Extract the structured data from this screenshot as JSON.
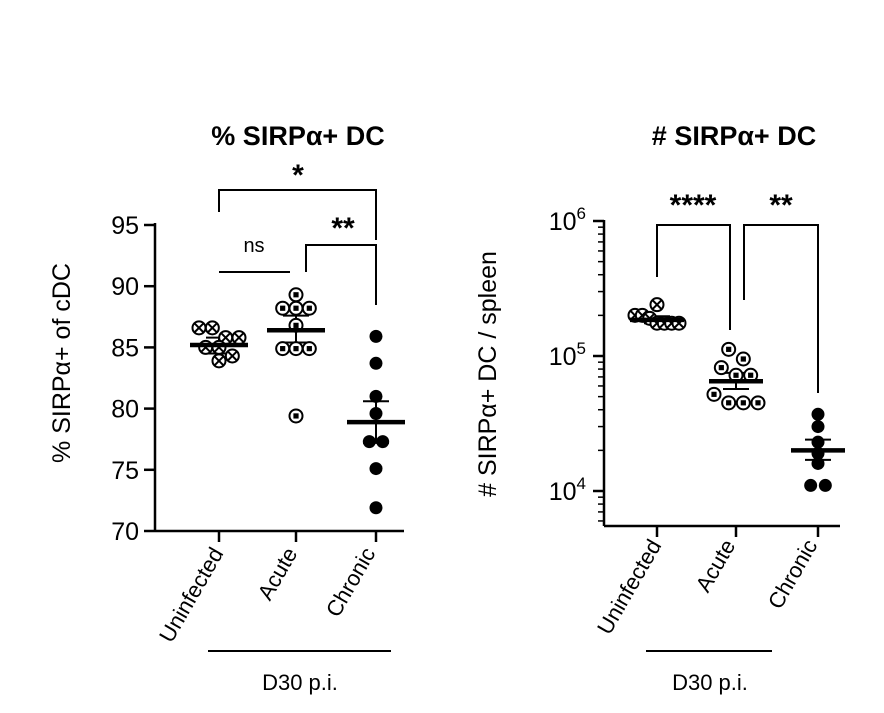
{
  "chart_data": [
    {
      "type": "scatter",
      "title": "% SIRPα+ DC",
      "ylabel": "% SIRPα+ of cDC",
      "ylim": [
        70,
        95
      ],
      "yscale": "linear",
      "yticks": [
        "70",
        "75",
        "80",
        "85",
        "90",
        "95"
      ],
      "categories": [
        "Uninfected",
        "Acute",
        "Chronic"
      ],
      "group_label": "D30 p.i.",
      "series": [
        {
          "category": "Uninfected",
          "marker": "circle-x",
          "mean": 85.2,
          "sem_low": 84.5,
          "sem_high": 85.8,
          "values": [
            85.8,
            85.8,
            86.6,
            84.3,
            83.9,
            85.0,
            85.0,
            86.6
          ]
        },
        {
          "category": "Acute",
          "marker": "circle-square",
          "mean": 86.4,
          "sem_low": 85.4,
          "sem_high": 87.6,
          "values": [
            89.3,
            88.2,
            88.2,
            88.2,
            86.8,
            84.9,
            84.9,
            84.9,
            79.4
          ]
        },
        {
          "category": "Chronic",
          "marker": "filled-circle",
          "mean": 78.9,
          "sem_low": 77.2,
          "sem_high": 80.6,
          "values": [
            85.9,
            83.7,
            81.0,
            79.6,
            77.3,
            77.3,
            75.1,
            71.9
          ]
        }
      ],
      "comparisons": [
        {
          "from": "Uninfected",
          "to": "Acute",
          "label": "ns"
        },
        {
          "from": "Acute",
          "to": "Chronic",
          "label": "**"
        },
        {
          "from": "Uninfected",
          "to": "Chronic",
          "label": "*"
        }
      ]
    },
    {
      "type": "scatter",
      "title": "# SIRPα+ DC",
      "ylabel": "# SIRPα+ DC / spleen",
      "ylim": [
        5000,
        1000000
      ],
      "yscale": "log",
      "yticks": [
        {
          "base": "10",
          "exp": "4"
        },
        {
          "base": "10",
          "exp": "5"
        },
        {
          "base": "10",
          "exp": "6"
        }
      ],
      "categories": [
        "Uninfected",
        "Acute",
        "Chronic"
      ],
      "group_label": "D30 p.i.",
      "series": [
        {
          "category": "Uninfected",
          "marker": "circle-x",
          "mean": 185000,
          "sem_low": 175000,
          "sem_high": 197000,
          "values": [
            240000,
            200000,
            200000,
            190000,
            175000,
            175000,
            175000,
            175000
          ]
        },
        {
          "category": "Acute",
          "marker": "circle-square",
          "mean": 65000,
          "sem_low": 57000,
          "sem_high": 75000,
          "values": [
            112000,
            95000,
            82000,
            72000,
            72000,
            52000,
            45000,
            45000,
            45000
          ]
        },
        {
          "category": "Chronic",
          "marker": "filled-circle",
          "mean": 20000,
          "sem_low": 17000,
          "sem_high": 24000,
          "values": [
            37000,
            30000,
            23000,
            19000,
            16000,
            11000,
            11000
          ]
        }
      ],
      "comparisons": [
        {
          "from": "Uninfected",
          "to": "Acute",
          "label": "****"
        },
        {
          "from": "Acute",
          "to": "Chronic",
          "label": "**"
        }
      ]
    }
  ]
}
